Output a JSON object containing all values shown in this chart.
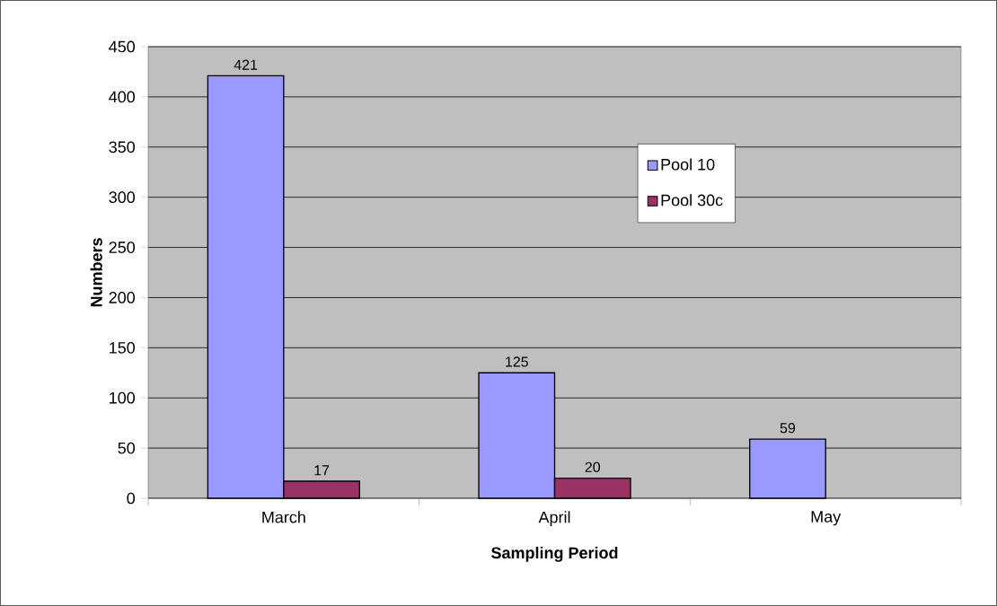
{
  "chart_data": {
    "type": "bar",
    "xlabel": "Sampling Period",
    "ylabel": "Numbers",
    "categories": [
      "March",
      "April",
      "May"
    ],
    "series": [
      {
        "name": "Pool 10",
        "color": "#9999ff",
        "values": [
          421,
          125,
          59
        ]
      },
      {
        "name": "Pool 30c",
        "color": "#993366",
        "values": [
          17,
          20,
          null
        ]
      }
    ],
    "ylim": [
      0,
      450
    ],
    "yticks": [
      0,
      50,
      100,
      150,
      200,
      250,
      300,
      350,
      400,
      450
    ],
    "grid": "y",
    "legend": "right",
    "data_labels": true
  }
}
